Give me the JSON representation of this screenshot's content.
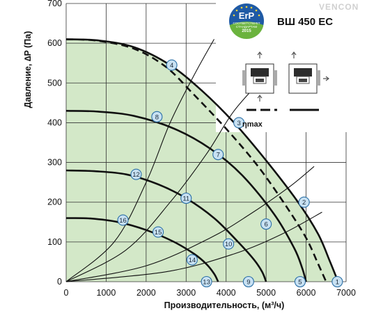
{
  "chart_data": {
    "type": "line",
    "title": "ВШ 450 ЕС",
    "xlabel": "Производительность, (м³/ч)",
    "ylabel": "Давление, ∆P (Па)",
    "xlim": [
      0,
      7000
    ],
    "ylim": [
      0,
      700
    ],
    "xticks": [
      0,
      1000,
      2000,
      3000,
      4000,
      5000,
      6000,
      7000
    ],
    "yticks": [
      0,
      100,
      200,
      300,
      400,
      500,
      600,
      700
    ],
    "grid": true,
    "curves": [
      {
        "id": "max",
        "style": "solid",
        "x": [
          0,
          800,
          1700,
          2600,
          3400,
          4200,
          5000,
          5800,
          6300,
          6600,
          6800
        ],
        "y": [
          610,
          607,
          590,
          545,
          480,
          400,
          305,
          200,
          120,
          50,
          0
        ]
      },
      {
        "id": "max-dashed",
        "style": "dashed",
        "x": [
          0,
          800,
          1700,
          2500,
          3200,
          4000,
          4800,
          5500,
          6000,
          6300,
          6500
        ],
        "y": [
          610,
          606,
          586,
          540,
          470,
          385,
          290,
          190,
          110,
          45,
          0
        ]
      },
      {
        "id": "speed-2",
        "style": "solid",
        "x": [
          0,
          800,
          1700,
          2700,
          3600,
          4400,
          5200,
          5700,
          5900,
          6000
        ],
        "y": [
          430,
          428,
          417,
          385,
          335,
          268,
          170,
          85,
          35,
          0
        ]
      },
      {
        "id": "speed-3",
        "style": "solid",
        "x": [
          0,
          700,
          1500,
          2300,
          3000,
          3700,
          4300,
          4700,
          4900,
          5000
        ],
        "y": [
          280,
          278,
          270,
          245,
          210,
          160,
          100,
          55,
          25,
          0
        ]
      },
      {
        "id": "speed-4",
        "style": "solid",
        "x": [
          0,
          600,
          1300,
          2000,
          2700,
          3200,
          3500,
          3700,
          3800
        ],
        "y": [
          160,
          159,
          150,
          130,
          100,
          70,
          45,
          20,
          0
        ]
      },
      {
        "id": "system-a",
        "style": "thin",
        "x": [
          0,
          1200,
          2000,
          2600,
          3200,
          3700
        ],
        "y": [
          0,
          100,
          250,
          400,
          520,
          610
        ]
      },
      {
        "id": "system-b",
        "style": "thin",
        "x": [
          0,
          1500,
          2600,
          3500,
          4200,
          5000
        ],
        "y": [
          0,
          80,
          200,
          320,
          430,
          520
        ]
      },
      {
        "id": "system-c",
        "style": "thin",
        "x": [
          0,
          2000,
          3600,
          4600,
          5600,
          6200
        ],
        "y": [
          0,
          40,
          110,
          170,
          240,
          290
        ]
      },
      {
        "id": "system-d",
        "style": "thin",
        "x": [
          0,
          2500,
          4200,
          5400,
          6400
        ],
        "y": [
          0,
          25,
          70,
          120,
          175
        ]
      }
    ],
    "points": [
      {
        "label": "1",
        "x": 6780,
        "y": 0
      },
      {
        "label": "2",
        "x": 5950,
        "y": 200
      },
      {
        "label": "3",
        "x": 4320,
        "y": 400
      },
      {
        "label": "4",
        "x": 2640,
        "y": 545
      },
      {
        "label": "5",
        "x": 5850,
        "y": 0
      },
      {
        "label": "6",
        "x": 5000,
        "y": 145
      },
      {
        "label": "7",
        "x": 3800,
        "y": 320
      },
      {
        "label": "8",
        "x": 2270,
        "y": 415
      },
      {
        "label": "9",
        "x": 4560,
        "y": 0
      },
      {
        "label": "10",
        "x": 4060,
        "y": 95
      },
      {
        "label": "11",
        "x": 3000,
        "y": 210
      },
      {
        "label": "12",
        "x": 1750,
        "y": 270
      },
      {
        "label": "13",
        "x": 3510,
        "y": 0
      },
      {
        "label": "14",
        "x": 3150,
        "y": 55
      },
      {
        "label": "15",
        "x": 2300,
        "y": 125
      },
      {
        "label": "16",
        "x": 1420,
        "y": 155
      }
    ],
    "efficiency_label": "ηmax"
  },
  "header": {
    "model": "ВШ 450 ЕС",
    "brand": "VENCON"
  },
  "badge": {
    "title": "ErP",
    "line1": "СООТВЕТСТВУЕТ",
    "line2": "СТАНДАРТАМ",
    "year": "2015"
  },
  "colors": {
    "fill": "#d3e8c8",
    "curve": "#111111",
    "grid": "#333333",
    "marker_fill": "#c8e1f2",
    "marker_stroke": "#2a6fa6",
    "badge_blue": "#1f5aa5",
    "badge_green": "#6bb33e"
  }
}
